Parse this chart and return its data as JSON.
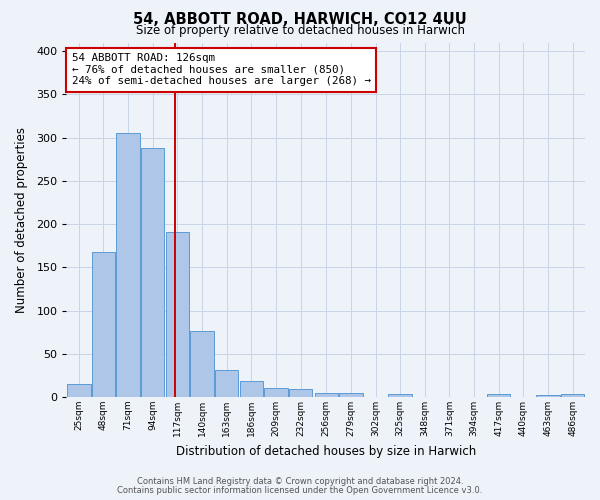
{
  "title": "54, ABBOTT ROAD, HARWICH, CO12 4UU",
  "subtitle": "Size of property relative to detached houses in Harwich",
  "xlabel": "Distribution of detached houses by size in Harwich",
  "ylabel": "Number of detached properties",
  "bin_labels": [
    "25sqm",
    "48sqm",
    "71sqm",
    "94sqm",
    "117sqm",
    "140sqm",
    "163sqm",
    "186sqm",
    "209sqm",
    "232sqm",
    "256sqm",
    "279sqm",
    "302sqm",
    "325sqm",
    "348sqm",
    "371sqm",
    "394sqm",
    "417sqm",
    "440sqm",
    "463sqm",
    "486sqm"
  ],
  "bin_edges": [
    25,
    48,
    71,
    94,
    117,
    140,
    163,
    186,
    209,
    232,
    256,
    279,
    302,
    325,
    348,
    371,
    394,
    417,
    440,
    463,
    486,
    509
  ],
  "bar_values": [
    15,
    168,
    305,
    288,
    191,
    76,
    31,
    19,
    10,
    9,
    5,
    5,
    0,
    4,
    0,
    0,
    0,
    3,
    0,
    2,
    3
  ],
  "bar_color": "#aec6e8",
  "bar_edge_color": "#5b9bd5",
  "red_line_x": 126,
  "annotation_line1": "54 ABBOTT ROAD: 126sqm",
  "annotation_line2": "← 76% of detached houses are smaller (850)",
  "annotation_line3": "24% of semi-detached houses are larger (268) →",
  "annotation_box_color": "#ffffff",
  "annotation_box_edge_color": "#cc0000",
  "ylim": [
    0,
    410
  ],
  "yticks": [
    0,
    50,
    100,
    150,
    200,
    250,
    300,
    350,
    400
  ],
  "footer_line1": "Contains HM Land Registry data © Crown copyright and database right 2024.",
  "footer_line2": "Contains public sector information licensed under the Open Government Licence v3.0.",
  "bg_color": "#eef2f9",
  "plot_bg_color": "#eef2f9",
  "grid_color": "#c8d4e8"
}
